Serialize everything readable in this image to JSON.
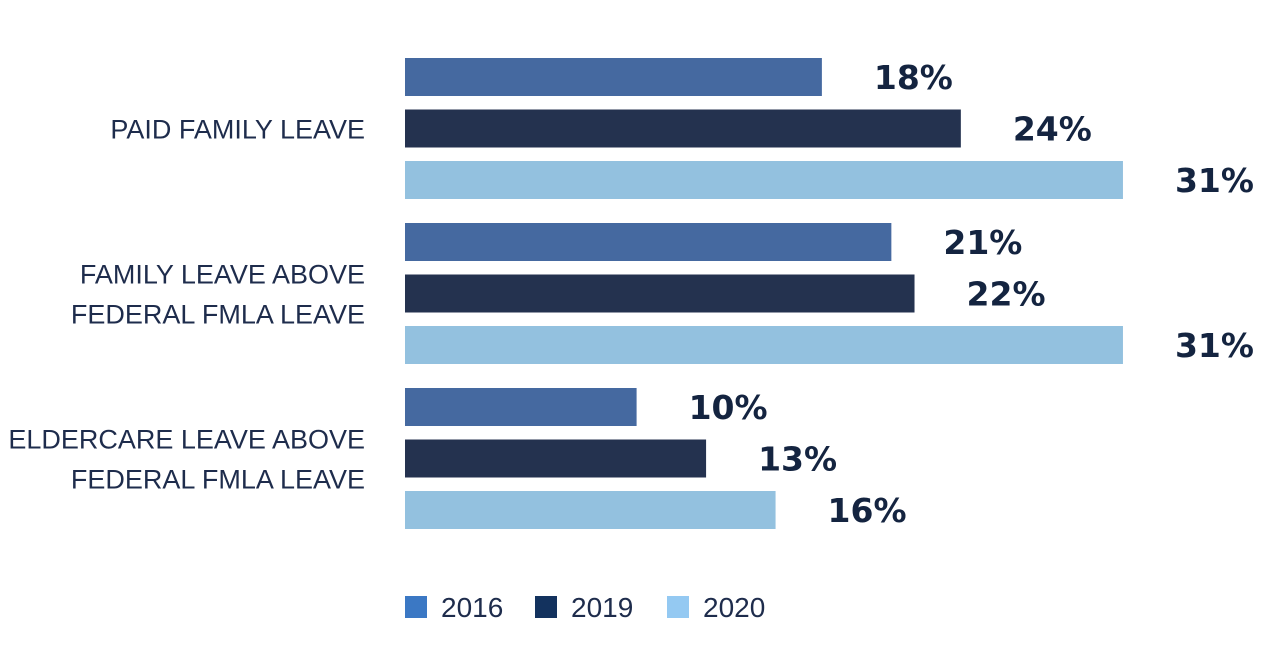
{
  "chart_data": {
    "type": "bar",
    "orientation": "horizontal",
    "categories": [
      [
        "PAID FAMILY LEAVE"
      ],
      [
        "FAMILY LEAVE ABOVE",
        "FEDERAL FMLA LEAVE"
      ],
      [
        "ELDERCARE LEAVE ABOVE",
        "FEDERAL FMLA LEAVE"
      ]
    ],
    "series": [
      {
        "name": "2016",
        "bar_color": "#4569a0",
        "legend_color": "#3b78c4",
        "values": [
          18,
          21,
          10
        ],
        "labels": [
          "18%",
          "21%",
          "10%"
        ]
      },
      {
        "name": "2019",
        "bar_color": "#24324f",
        "legend_color": "#13325e",
        "values": [
          24,
          22,
          13
        ],
        "labels": [
          "24%",
          "22%",
          "13%"
        ]
      },
      {
        "name": "2020",
        "bar_color": "#93c1df",
        "legend_color": "#94c9f2",
        "values": [
          31,
          31,
          16
        ],
        "labels": [
          "31%",
          "31%",
          "16%"
        ]
      }
    ],
    "value_unit": "%",
    "xlim": [
      0,
      31
    ],
    "grid": false,
    "legend_position": "bottom"
  }
}
